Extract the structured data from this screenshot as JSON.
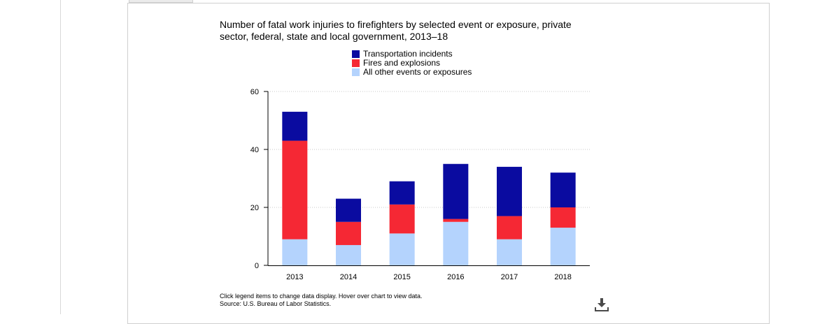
{
  "chart_data": {
    "type": "bar",
    "stacked": true,
    "title": "Number of fatal work injuries to firefighters by selected event or exposure, private sector, federal, state and local government, 2013–18",
    "categories": [
      "2013",
      "2014",
      "2015",
      "2016",
      "2017",
      "2018"
    ],
    "series": [
      {
        "name": "All other events or exposures",
        "color": "#b4d3fd",
        "values": [
          9,
          7,
          11,
          15,
          9,
          13
        ]
      },
      {
        "name": "Fires and explosions",
        "color": "#f52834",
        "values": [
          34,
          8,
          10,
          1,
          8,
          7
        ]
      },
      {
        "name": "Transportation incidents",
        "color": "#0a0ba0",
        "values": [
          10,
          8,
          8,
          19,
          17,
          12
        ]
      }
    ],
    "legend_order": [
      "Transportation incidents",
      "Fires and explosions",
      "All other events or exposures"
    ],
    "legend_position": "top-center",
    "ylim": [
      0,
      60
    ],
    "yticks": [
      0,
      20,
      40,
      60
    ],
    "grid": true
  },
  "footer": {
    "instructions": "Click legend items to change data display. Hover over chart to view data.",
    "source": "Source: U.S. Bureau of Labor Statistics."
  },
  "icons": {
    "download": "download-icon"
  }
}
